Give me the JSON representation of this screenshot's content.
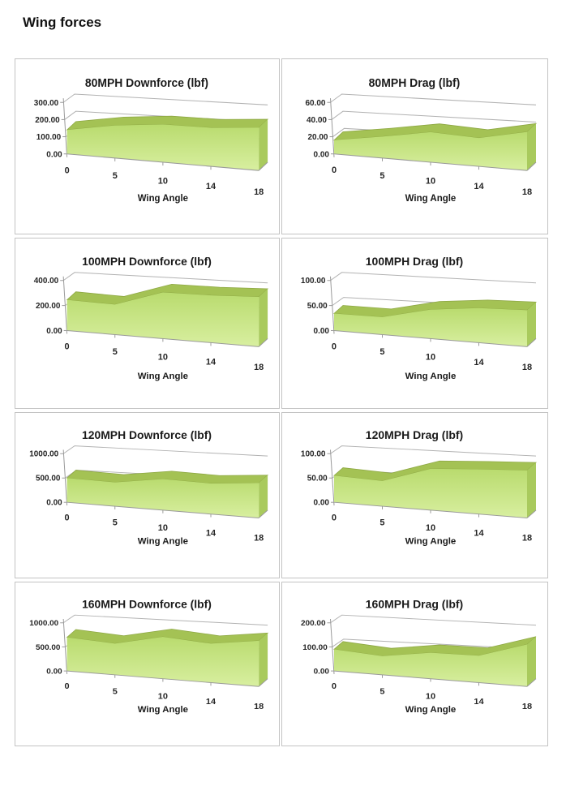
{
  "page": {
    "title": "Wing forces"
  },
  "colors": {
    "area_top_surface": "#a4c254",
    "area_top_stroke": "#8ea844",
    "area_side": "#a9ca5d",
    "area_front_top": "#b9db6e",
    "area_front_bottom": "#d8efa0",
    "grid": "#b2b2b2",
    "axis": "#9a9a9a",
    "border": "#c3c3c3",
    "text": "#1a1a1a"
  },
  "chart_data": [
    {
      "type": "area",
      "title": "80MPH Downforce (lbf)",
      "xlabel": "Wing Angle",
      "categories": [
        "0",
        "5",
        "10",
        "14",
        "18"
      ],
      "values": [
        140,
        190,
        220,
        225,
        250
      ],
      "y_ticks": [
        "0.00",
        "100.00",
        "200.00",
        "300.00"
      ],
      "y_max": 300,
      "ylim": [
        0,
        300
      ],
      "grid": true,
      "legend": "none"
    },
    {
      "type": "area",
      "title": "80MPH Drag (lbf)",
      "xlabel": "Wing Angle",
      "categories": [
        "0",
        "5",
        "10",
        "14",
        "18"
      ],
      "values": [
        16,
        25,
        35,
        33,
        45
      ],
      "y_ticks": [
        "0.00",
        "20.00",
        "40.00",
        "60.00"
      ],
      "y_max": 60,
      "ylim": [
        0,
        60
      ],
      "grid": true,
      "legend": "none"
    },
    {
      "type": "area",
      "title": "100MPH Downforce (lbf)",
      "xlabel": "Wing Angle",
      "categories": [
        "0",
        "5",
        "10",
        "14",
        "18"
      ],
      "values": [
        245,
        240,
        370,
        378,
        398
      ],
      "y_ticks": [
        "0.00",
        "200.00",
        "400.00"
      ],
      "y_max": 400,
      "ylim": [
        0,
        400
      ],
      "grid": true,
      "legend": "none"
    },
    {
      "type": "area",
      "title": "100MPH Drag (lbf)",
      "xlabel": "Wing Angle",
      "categories": [
        "0",
        "5",
        "10",
        "14",
        "18"
      ],
      "values": [
        34,
        35,
        58,
        69,
        73
      ],
      "y_ticks": [
        "0.00",
        "50.00",
        "100.00"
      ],
      "y_max": 100,
      "ylim": [
        0,
        100
      ],
      "grid": true,
      "legend": "none"
    },
    {
      "type": "area",
      "title": "120MPH Downforce (lbf)",
      "xlabel": "Wing Angle",
      "categories": [
        "0",
        "5",
        "10",
        "14",
        "18"
      ],
      "values": [
        500,
        490,
        640,
        630,
        720
      ],
      "y_ticks": [
        "0.00",
        "500.00",
        "1000.00"
      ],
      "y_max": 1000,
      "ylim": [
        0,
        1000
      ],
      "grid": true,
      "legend": "none"
    },
    {
      "type": "area",
      "title": "120MPH Drag (lbf)",
      "xlabel": "Wing Angle",
      "categories": [
        "0",
        "5",
        "10",
        "14",
        "18"
      ],
      "values": [
        55,
        52,
        85,
        92,
        98
      ],
      "y_ticks": [
        "0.00",
        "50.00",
        "100.00"
      ],
      "y_max": 100,
      "ylim": [
        0,
        100
      ],
      "grid": true,
      "legend": "none"
    },
    {
      "type": "area",
      "title": "160MPH Downforce (lbf)",
      "xlabel": "Wing Angle",
      "categories": [
        "0",
        "5",
        "10",
        "14",
        "18"
      ],
      "values": [
        700,
        650,
        870,
        810,
        950
      ],
      "y_ticks": [
        "0.00",
        "500.00",
        "1000.00"
      ],
      "y_max": 1000,
      "ylim": [
        0,
        1000
      ],
      "grid": true,
      "legend": "none"
    },
    {
      "type": "area",
      "title": "160MPH Drag (lbf)",
      "xlabel": "Wing Angle",
      "categories": [
        "0",
        "5",
        "10",
        "14",
        "18"
      ],
      "values": [
        90,
        78,
        108,
        112,
        175
      ],
      "y_ticks": [
        "0.00",
        "100.00",
        "200.00"
      ],
      "y_max": 200,
      "ylim": [
        0,
        200
      ],
      "grid": true,
      "legend": "none"
    }
  ]
}
